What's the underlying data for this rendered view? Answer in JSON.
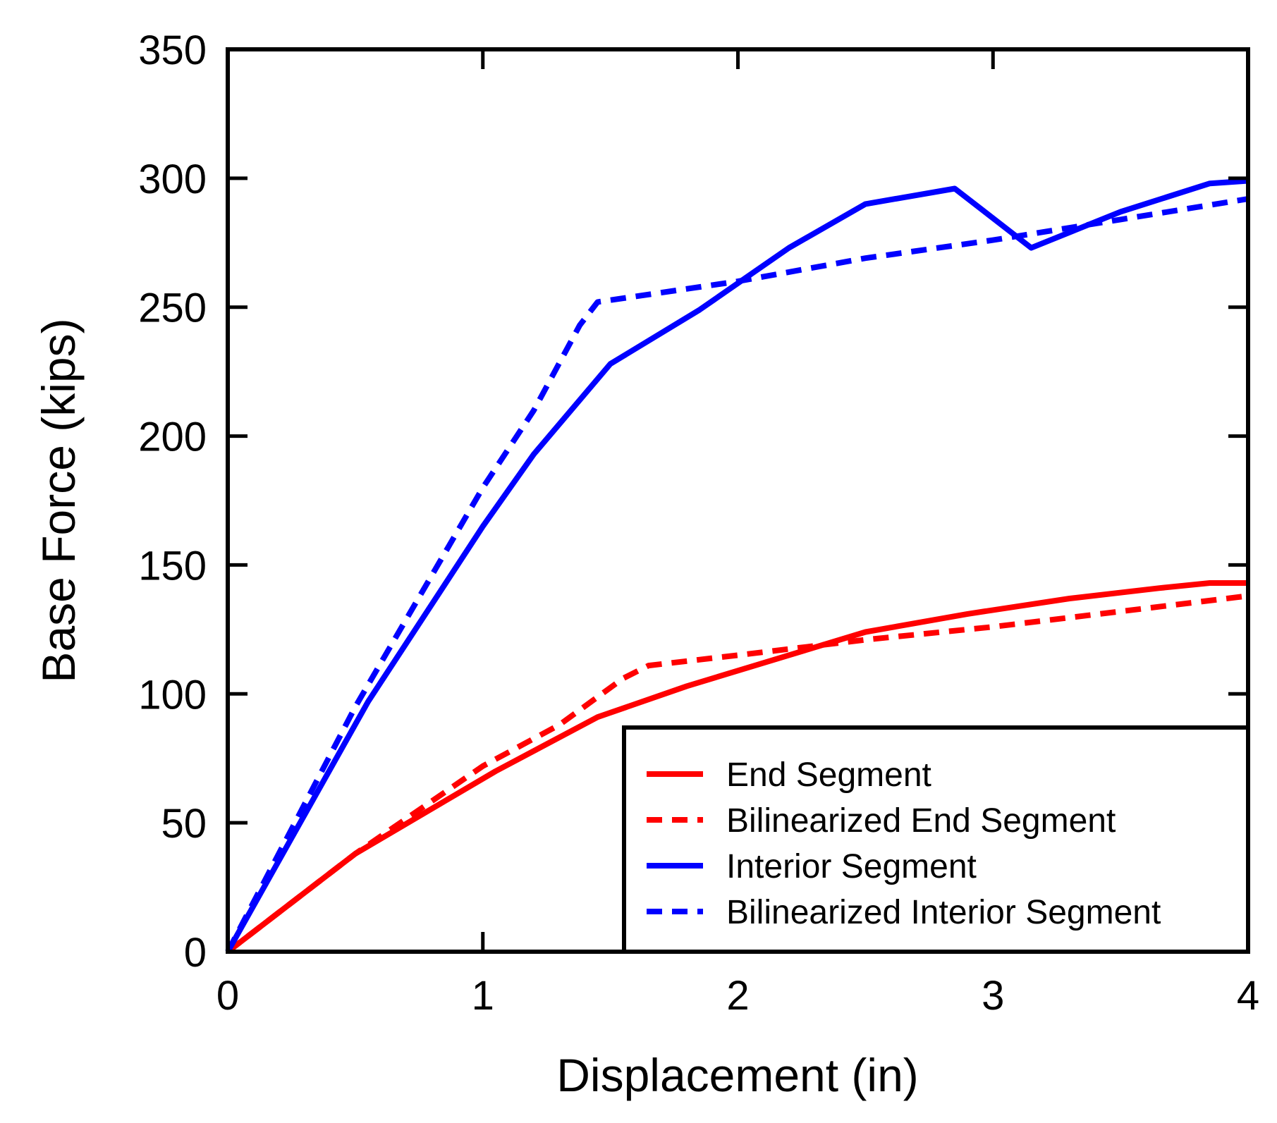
{
  "chart_data": {
    "type": "line",
    "xlabel": "Displacement (in)",
    "ylabel": "Base Force (kips)",
    "xlim": [
      0,
      4
    ],
    "ylim": [
      0,
      350
    ],
    "xticks": [
      0,
      1,
      2,
      3,
      4
    ],
    "yticks": [
      0,
      50,
      100,
      150,
      200,
      250,
      300,
      350
    ],
    "grid": false,
    "legend_position": "bottom-right",
    "series": [
      {
        "name": "End Segment",
        "color": "#ff0000",
        "style": "solid",
        "x": [
          0,
          0.5,
          1.05,
          1.45,
          1.8,
          2.2,
          2.5,
          2.9,
          3.3,
          3.65,
          3.85,
          4.0
        ],
        "y": [
          0,
          38,
          70,
          91,
          103,
          115,
          124,
          131,
          137,
          141,
          143,
          143
        ]
      },
      {
        "name": "Bilinearized End Segment",
        "color": "#ff0000",
        "style": "dashed",
        "x": [
          0,
          0.5,
          1.0,
          1.3,
          1.55,
          1.65,
          2.0,
          2.5,
          3.0,
          3.5,
          4.0
        ],
        "y": [
          0,
          38,
          72,
          88,
          106,
          111,
          115,
          121,
          126,
          132,
          138
        ]
      },
      {
        "name": "Interior Segment",
        "color": "#0000ff",
        "style": "solid",
        "x": [
          0,
          0.55,
          1.0,
          1.2,
          1.5,
          1.85,
          2.2,
          2.5,
          2.85,
          3.15,
          3.5,
          3.85,
          4.0
        ],
        "y": [
          0,
          97,
          165,
          193,
          228,
          249,
          273,
          290,
          296,
          273,
          287,
          298,
          299
        ]
      },
      {
        "name": "Bilinearized Interior Segment",
        "color": "#0000ff",
        "style": "dashed",
        "x": [
          0,
          0.5,
          1.0,
          1.2,
          1.38,
          1.45,
          2.0,
          2.5,
          3.0,
          3.5,
          4.0
        ],
        "y": [
          0,
          95,
          180,
          210,
          243,
          252,
          260,
          269,
          276,
          284,
          292
        ]
      }
    ]
  }
}
